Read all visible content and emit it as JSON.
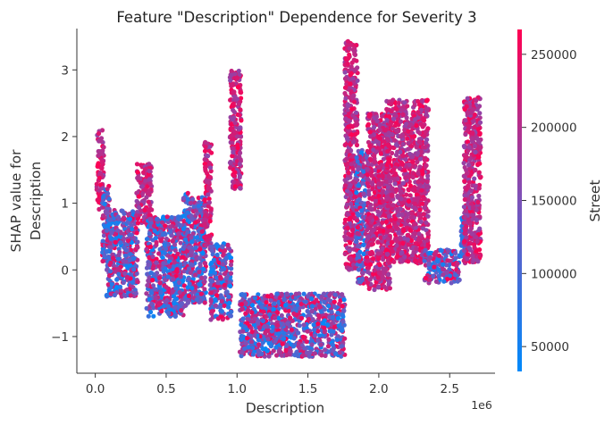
{
  "chart_data": {
    "type": "scatter",
    "title": "Feature \"Description\" Dependence for Severity 3",
    "xlabel": "Description",
    "ylabel_lines": [
      "SHAP value for",
      "Description"
    ],
    "x_offset_label": "1e6",
    "xlim": [
      -0.13,
      2.82
    ],
    "ylim": [
      -1.55,
      3.62
    ],
    "x_ticks": [
      {
        "value": 0.0,
        "label": "0.0"
      },
      {
        "value": 0.5,
        "label": "0.5"
      },
      {
        "value": 1.0,
        "label": "1.0"
      },
      {
        "value": 1.5,
        "label": "1.5"
      },
      {
        "value": 2.0,
        "label": "2.0"
      },
      {
        "value": 2.5,
        "label": "2.5"
      }
    ],
    "y_ticks": [
      {
        "value": -1,
        "label": "−1"
      },
      {
        "value": 0,
        "label": "0"
      },
      {
        "value": 1,
        "label": "1"
      },
      {
        "value": 2,
        "label": "2"
      },
      {
        "value": 3,
        "label": "3"
      }
    ],
    "colorbar": {
      "label": "Street",
      "range": [
        33000,
        267000
      ],
      "ticks": [
        {
          "value": 50000,
          "label": "50000"
        },
        {
          "value": 100000,
          "label": "100000"
        },
        {
          "value": 150000,
          "label": "150000"
        },
        {
          "value": 200000,
          "label": "200000"
        },
        {
          "value": 250000,
          "label": "250000"
        }
      ],
      "colors": [
        "#008afb",
        "#7c52b9",
        "#ff0052"
      ]
    },
    "grid": false,
    "clusters": [
      {
        "x": [
          0.01,
          0.06
        ],
        "y": [
          0.9,
          2.1
        ],
        "street": "high"
      },
      {
        "x": [
          0.05,
          0.1
        ],
        "y": [
          0.1,
          1.3
        ],
        "street": "mixed"
      },
      {
        "x": [
          0.08,
          0.3
        ],
        "y": [
          -0.4,
          0.9
        ],
        "street": "mixed"
      },
      {
        "x": [
          0.29,
          0.4
        ],
        "y": [
          0.7,
          1.6
        ],
        "street": "high"
      },
      {
        "x": [
          0.36,
          0.64
        ],
        "y": [
          -0.7,
          0.8
        ],
        "street": "mixed"
      },
      {
        "x": [
          0.62,
          0.66
        ],
        "y": [
          0.2,
          1.2
        ],
        "street": "mixed"
      },
      {
        "x": [
          0.65,
          0.78
        ],
        "y": [
          -0.5,
          1.1
        ],
        "street": "mixed"
      },
      {
        "x": [
          0.77,
          0.82
        ],
        "y": [
          0.3,
          1.95
        ],
        "street": "high"
      },
      {
        "x": [
          0.81,
          0.96
        ],
        "y": [
          -0.75,
          0.4
        ],
        "street": "mixed"
      },
      {
        "x": [
          0.95,
          1.03
        ],
        "y": [
          1.2,
          3.0
        ],
        "street": "high"
      },
      {
        "x": [
          1.02,
          1.76
        ],
        "y": [
          -1.3,
          -0.35
        ],
        "street": "mixed"
      },
      {
        "x": [
          1.76,
          1.85
        ],
        "y": [
          0.0,
          3.45
        ],
        "street": "high"
      },
      {
        "x": [
          1.84,
          1.92
        ],
        "y": [
          -0.2,
          1.8
        ],
        "street": "mixed"
      },
      {
        "x": [
          1.92,
          2.08
        ],
        "y": [
          -0.3,
          2.35
        ],
        "street": "high"
      },
      {
        "x": [
          2.05,
          2.35
        ],
        "y": [
          0.1,
          2.55
        ],
        "street": "high"
      },
      {
        "x": [
          2.32,
          2.57
        ],
        "y": [
          -0.2,
          0.3
        ],
        "street": "mixed"
      },
      {
        "x": [
          2.58,
          2.62
        ],
        "y": [
          0.2,
          0.8
        ],
        "street": "low"
      },
      {
        "x": [
          2.6,
          2.72
        ],
        "y": [
          0.1,
          2.6
        ],
        "street": "high"
      }
    ]
  }
}
